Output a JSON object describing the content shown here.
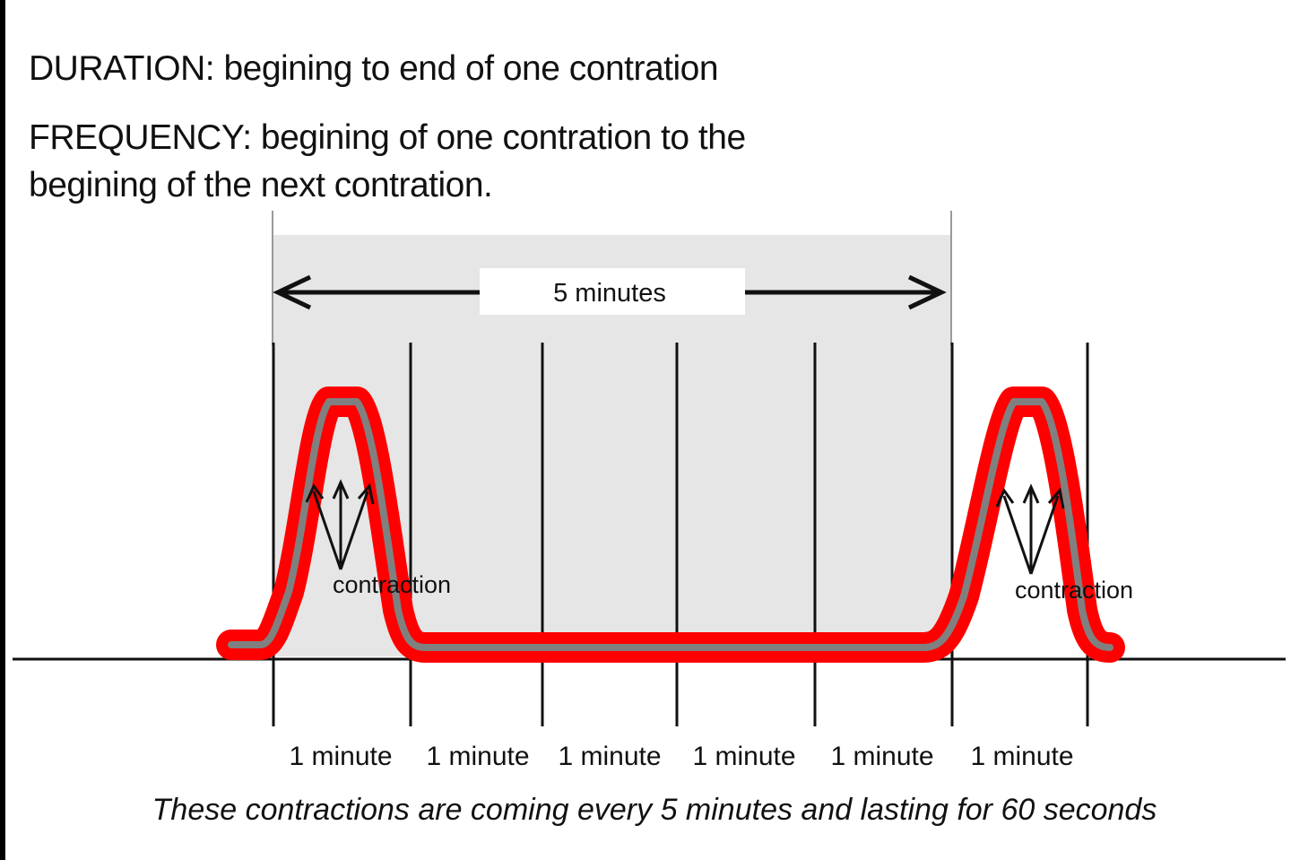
{
  "definitions": {
    "duration": "DURATION: begining to end of one contration",
    "frequency_line1": "FREQUENCY: begining of one contration to the",
    "frequency_line2": "begining of the next contration."
  },
  "interval_label": "5 minutes",
  "contraction_labels": [
    "contraction",
    "contraction"
  ],
  "minute_labels": [
    "1 minute",
    "1 minute",
    "1 minute",
    "1 minute",
    "1 minute",
    "1 minute"
  ],
  "caption": "These contractions are coming every 5 minutes and lasting for 60 seconds",
  "colors": {
    "contraction_outline": "#ff0000",
    "contraction_core": "#808080",
    "interval_shade": "#e6e6e6",
    "line": "#111111"
  }
}
